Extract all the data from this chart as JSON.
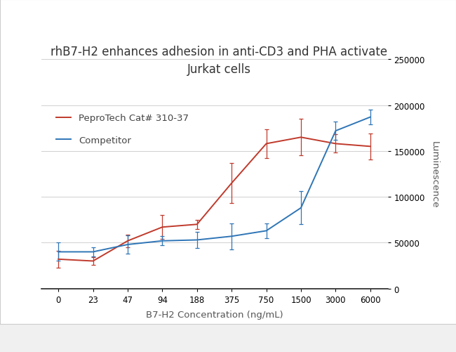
{
  "title_line1": "rhB7-H2 enhances adhesion in anti-CD3 and PHA activate",
  "title_line2": "Jurkat cells",
  "xlabel": "B7-H2 Concentration (ng/mL)",
  "ylabel": "Luminescence",
  "x_ticks": [
    0,
    23,
    47,
    94,
    188,
    375,
    750,
    1500,
    3000,
    6000
  ],
  "x_positions": [
    0,
    1,
    2,
    3,
    4,
    5,
    6,
    7,
    8,
    9
  ],
  "red_label": "PeproTech Cat# 310-37",
  "blue_label": "Competitor",
  "red_color": "#c0392b",
  "blue_color": "#2e75b6",
  "red_y": [
    32000,
    30000,
    52000,
    67000,
    70000,
    115000,
    158000,
    165000,
    158000,
    155000
  ],
  "red_err": [
    9000,
    4000,
    7000,
    13000,
    5000,
    22000,
    16000,
    20000,
    10000,
    14000
  ],
  "blue_y": [
    40000,
    40000,
    48000,
    52000,
    53000,
    57000,
    63000,
    88000,
    172000,
    187000
  ],
  "blue_err": [
    10000,
    5000,
    10000,
    5000,
    9000,
    14000,
    8000,
    18000,
    10000,
    8000
  ],
  "ylim": [
    0,
    250000
  ],
  "yticks": [
    0,
    50000,
    100000,
    150000,
    200000,
    250000
  ],
  "bg_color": "#f0f0f0",
  "panel_color": "#ffffff",
  "outer_box_color": "#ffffff",
  "grid_color": "#d0d0d0",
  "title_fontsize": 12,
  "label_fontsize": 9.5,
  "tick_fontsize": 8.5,
  "legend_fontsize": 9.5
}
